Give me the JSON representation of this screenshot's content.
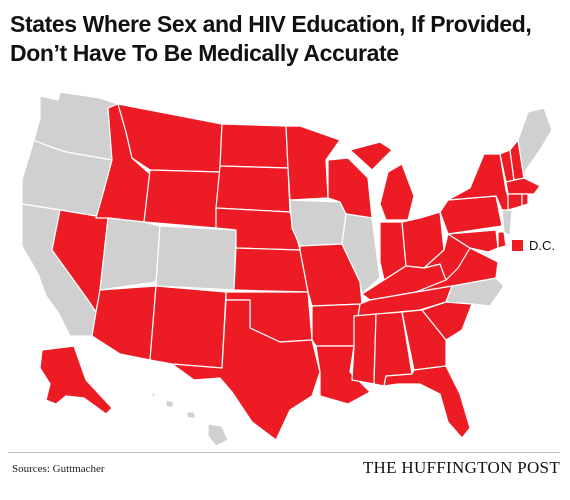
{
  "title": "States Where Sex and HIV Education, If Provided, Don’t Have To Be Medically Accurate",
  "legend": {
    "label": "D.C."
  },
  "colors": {
    "highlighted": "#ed1c24",
    "not_highlighted": "#d0d0d0",
    "border": "#ffffff"
  },
  "map": {
    "highlighted_states": [
      "MT",
      "ID",
      "NV",
      "WY",
      "ND",
      "SD",
      "NE",
      "KS",
      "OK",
      "TX",
      "NM",
      "AZ",
      "MN",
      "WI",
      "MO",
      "AR",
      "LA",
      "MS",
      "AL",
      "TN",
      "KY",
      "IN",
      "OH",
      "MI",
      "GA",
      "SC",
      "FL",
      "WV",
      "VA",
      "PA",
      "NY",
      "VT",
      "NH",
      "MA",
      "RI",
      "CT",
      "MD",
      "DE",
      "AK"
    ],
    "other_states": [
      "WA",
      "OR",
      "CA",
      "UT",
      "CO",
      "IA",
      "IL",
      "NC",
      "NJ",
      "ME",
      "HI"
    ]
  },
  "source": "Sources: Guttmacher",
  "brand": "THE HUFFINGTON POST"
}
